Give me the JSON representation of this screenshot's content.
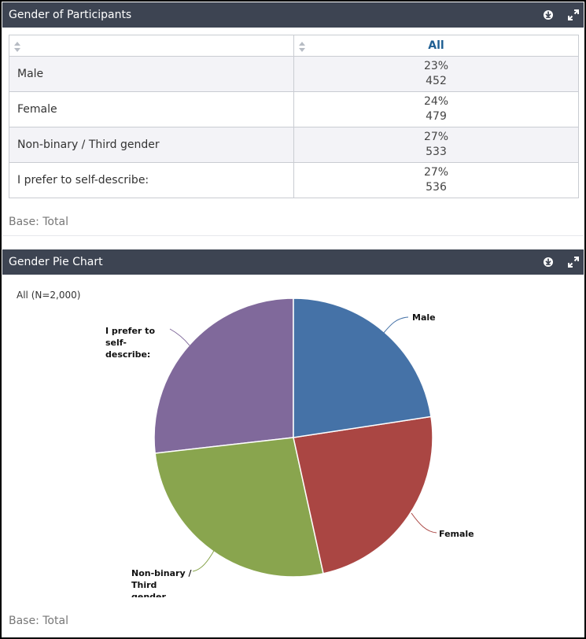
{
  "table_panel": {
    "title": "Gender of Participants",
    "column_header": "All",
    "rows": [
      {
        "label": "Male",
        "pct": "23%",
        "count": "452"
      },
      {
        "label": "Female",
        "pct": "24%",
        "count": "479"
      },
      {
        "label": "Non-binary / Third gender",
        "pct": "27%",
        "count": "533"
      },
      {
        "label": "I prefer to self-describe:",
        "pct": "27%",
        "count": "536"
      }
    ],
    "base": "Base: Total"
  },
  "pie_panel": {
    "title": "Gender Pie Chart",
    "n_label": "All (N=2,000)",
    "base": "Base: Total",
    "label_male": "Male",
    "label_female": "Female",
    "label_nonbinary": [
      "Non-binary /",
      "Third",
      "gender"
    ],
    "label_selfdescribe": [
      "I prefer to",
      "self-",
      "describe:"
    ]
  },
  "icons": {
    "download": "download-icon",
    "expand": "expand-icon",
    "sort": "sort-icon"
  },
  "chart_data": {
    "type": "pie",
    "categories": [
      "Male",
      "Female",
      "Non-binary / Third gender",
      "I prefer to self-describe:"
    ],
    "values": [
      452,
      479,
      533,
      536
    ],
    "colors": [
      "#4572a7",
      "#aa4643",
      "#89a54e",
      "#80699b"
    ]
  }
}
